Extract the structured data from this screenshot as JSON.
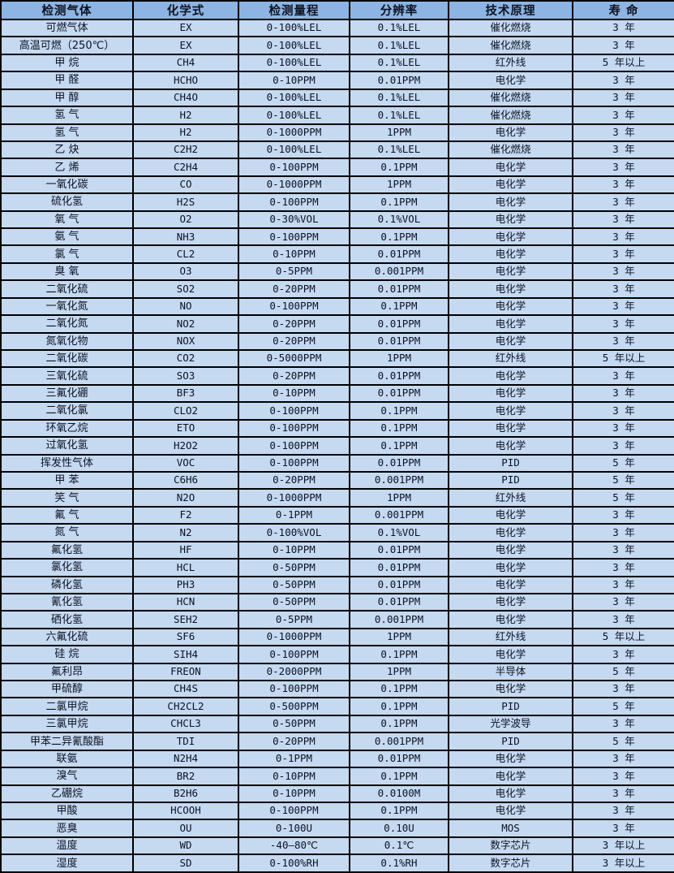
{
  "table": {
    "columns": [
      {
        "key": "gas",
        "label": "检测气体"
      },
      {
        "key": "formula",
        "label": "化学式"
      },
      {
        "key": "range",
        "label": "检测量程"
      },
      {
        "key": "resolution",
        "label": "分辨率"
      },
      {
        "key": "principle",
        "label": "技术原理"
      },
      {
        "key": "lifespan",
        "label": "寿 命"
      }
    ],
    "rows": [
      [
        "可燃气体",
        "EX",
        "0-100%LEL",
        "0.1%LEL",
        "催化燃烧",
        "3 年"
      ],
      [
        "高温可燃（250℃）",
        "EX",
        "0-100%LEL",
        "0.1%LEL",
        "催化燃烧",
        "3 年"
      ],
      [
        "甲 烷",
        "CH4",
        "0-100%LEL",
        "0.1%LEL",
        "红外线",
        "5 年以上"
      ],
      [
        "甲 醛",
        "HCHO",
        "0-10PPM",
        "0.01PPM",
        "电化学",
        "3 年"
      ],
      [
        "甲 醇",
        "CH4O",
        "0-100%LEL",
        "0.1%LEL",
        "催化燃烧",
        "3 年"
      ],
      [
        "氢 气",
        "H2",
        "0-100%LEL",
        "0.1%LEL",
        "催化燃烧",
        "3 年"
      ],
      [
        "氢 气",
        "H2",
        "0-1000PPM",
        "1PPM",
        "电化学",
        "3 年"
      ],
      [
        "乙 炔",
        "C2H2",
        "0-100%LEL",
        "0.1%LEL",
        "催化燃烧",
        "3 年"
      ],
      [
        "乙 烯",
        "C2H4",
        "0-100PPM",
        "0.1PPM",
        "电化学",
        "3 年"
      ],
      [
        "一氧化碳",
        "CO",
        "0-1000PPM",
        "1PPM",
        "电化学",
        "3 年"
      ],
      [
        "硫化氢",
        "H2S",
        "0-100PPM",
        "0.1PPM",
        "电化学",
        "3 年"
      ],
      [
        "氧 气",
        "O2",
        "0-30%VOL",
        "0.1%VOL",
        "电化学",
        "3 年"
      ],
      [
        "氨 气",
        "NH3",
        "0-100PPM",
        "0.1PPM",
        "电化学",
        "3 年"
      ],
      [
        "氯 气",
        "CL2",
        "0-10PPM",
        "0.01PPM",
        "电化学",
        "3 年"
      ],
      [
        "臭 氧",
        "O3",
        "0-5PPM",
        "0.001PPM",
        "电化学",
        "3 年"
      ],
      [
        "二氧化硫",
        "SO2",
        "0-20PPM",
        "0.01PPM",
        "电化学",
        "3 年"
      ],
      [
        "一氧化氮",
        "NO",
        "0-100PPM",
        "0.1PPM",
        "电化学",
        "3 年"
      ],
      [
        "二氧化氮",
        "NO2",
        "0-20PPM",
        "0.01PPM",
        "电化学",
        "3 年"
      ],
      [
        "氮氧化物",
        "NOX",
        "0-20PPM",
        "0.01PPM",
        "电化学",
        "3 年"
      ],
      [
        "二氧化碳",
        "CO2",
        "0-5000PPM",
        "1PPM",
        "红外线",
        "5 年以上"
      ],
      [
        "三氧化硫",
        "SO3",
        "0-20PPM",
        "0.01PPM",
        "电化学",
        "3 年"
      ],
      [
        "三氟化硼",
        "BF3",
        "0-10PPM",
        "0.01PPM",
        "电化学",
        "3 年"
      ],
      [
        "二氧化氯",
        "CLO2",
        "0-100PPM",
        "0.1PPM",
        "电化学",
        "3 年"
      ],
      [
        "环氧乙烷",
        "ETO",
        "0-100PPM",
        "0.1PPM",
        "电化学",
        "3 年"
      ],
      [
        "过氧化氢",
        "H2O2",
        "0-100PPM",
        "0.1PPM",
        "电化学",
        "3 年"
      ],
      [
        "挥发性气体",
        "VOC",
        "0-100PPM",
        "0.01PPM",
        "PID",
        "5 年"
      ],
      [
        "甲 苯",
        "C6H6",
        "0-20PPM",
        "0.001PPM",
        "PID",
        "5 年"
      ],
      [
        "笑 气",
        "N2O",
        "0-1000PPM",
        "1PPM",
        "红外线",
        "5 年"
      ],
      [
        "氟 气",
        "F2",
        "0-1PPM",
        "0.001PPM",
        "电化学",
        "3 年"
      ],
      [
        "氮 气",
        "N2",
        "0-100%VOL",
        "0.1%VOL",
        "电化学",
        "3 年"
      ],
      [
        "氟化氢",
        "HF",
        "0-10PPM",
        "0.01PPM",
        "电化学",
        "3 年"
      ],
      [
        "氯化氢",
        "HCL",
        "0-50PPM",
        "0.01PPM",
        "电化学",
        "3 年"
      ],
      [
        "磷化氢",
        "PH3",
        "0-50PPM",
        "0.01PPM",
        "电化学",
        "3 年"
      ],
      [
        "氰化氢",
        "HCN",
        "0-50PPM",
        "0.01PPM",
        "电化学",
        "3 年"
      ],
      [
        "硒化氢",
        "SEH2",
        "0-5PPM",
        "0.001PPM",
        "电化学",
        "3 年"
      ],
      [
        "六氟化硫",
        "SF6",
        "0-1000PPM",
        "1PPM",
        "红外线",
        "5 年以上"
      ],
      [
        "硅 烷",
        "SIH4",
        "0-100PPM",
        "0.1PPM",
        "电化学",
        "3 年"
      ],
      [
        "氟利昂",
        "FREON",
        "0-2000PPM",
        "1PPM",
        "半导体",
        "5 年"
      ],
      [
        "甲硫醇",
        "CH4S",
        "0-100PPM",
        "0.1PPM",
        "电化学",
        "3 年"
      ],
      [
        "二氯甲烷",
        "CH2CL2",
        "0-500PPM",
        "0.1PPM",
        "PID",
        "5 年"
      ],
      [
        "三氯甲烷",
        "CHCL3",
        "0-50PPM",
        "0.1PPM",
        "光学波导",
        "3 年"
      ],
      [
        "甲苯二异氰酸酯",
        "TDI",
        "0-20PPM",
        "0.001PPM",
        "PID",
        "5 年"
      ],
      [
        "联氨",
        "N2H4",
        "0-1PPM",
        "0.01PPM",
        "电化学",
        "3 年"
      ],
      [
        "溴气",
        "BR2",
        "0-10PPM",
        "0.1PPM",
        "电化学",
        "3 年"
      ],
      [
        "乙硼烷",
        "B2H6",
        "0-10PPM",
        "0.0100M",
        "电化学",
        "3 年"
      ],
      [
        "甲酸",
        "HCOOH",
        "0-100PPM",
        "0.1PPM",
        "电化学",
        "3 年"
      ],
      [
        "恶臭",
        "OU",
        "0-100U",
        "0.10U",
        "MOS",
        "3 年"
      ],
      [
        "温度",
        "WD",
        "-40—80℃",
        "0.1℃",
        "数字芯片",
        "3 年以上"
      ],
      [
        "湿度",
        "SD",
        "0-100%RH",
        "0.1%RH",
        "数字芯片",
        "3 年以上"
      ]
    ]
  },
  "colors": {
    "header_bg": "#8db4e2",
    "row_bg": "#c5d9f1",
    "border": "#000000",
    "text": "#0d1322"
  }
}
